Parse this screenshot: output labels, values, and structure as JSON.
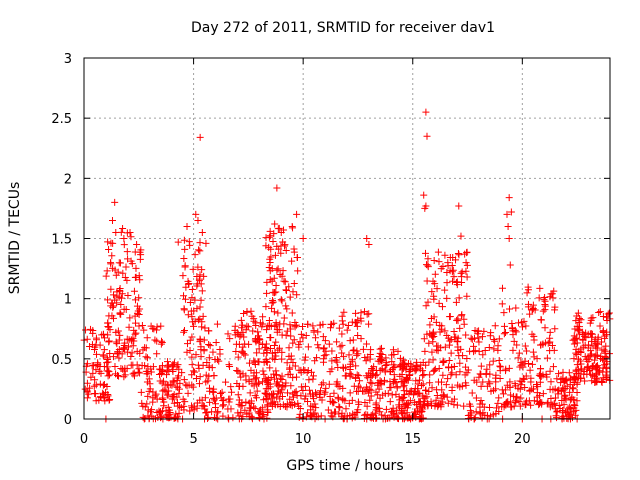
{
  "chart_data": {
    "type": "scatter",
    "title": "Day 272 of 2011, SRMTID for receiver dav1",
    "xlabel": "GPS time / hours",
    "ylabel": "SRMTID / TECUs",
    "xlim": [
      0,
      24
    ],
    "ylim": [
      0,
      3
    ],
    "xticks": [
      0,
      5,
      10,
      15,
      20
    ],
    "xtick_labels": [
      "0",
      "5",
      "10",
      "15",
      "20"
    ],
    "yticks": [
      0,
      0.5,
      1,
      1.5,
      2,
      2.5,
      3
    ],
    "ytick_labels": [
      "0",
      "0.5",
      "1",
      "1.5",
      "2",
      "2.5",
      "3"
    ],
    "grid": true,
    "marker": "plus",
    "series": [
      {
        "name": "dav1",
        "color": "#ff0000",
        "clusters": [
          {
            "x_start": 0.0,
            "x_end": 1.2,
            "y_low": 0.15,
            "y_high": 0.8,
            "n": 70
          },
          {
            "x_start": 1.0,
            "x_end": 2.6,
            "y_low": 0.35,
            "y_high": 1.6,
            "n": 150
          },
          {
            "x_start": 2.6,
            "x_end": 3.6,
            "y_low": 0.0,
            "y_high": 0.8,
            "n": 70
          },
          {
            "x_start": 3.5,
            "x_end": 4.5,
            "y_low": 0.0,
            "y_high": 0.5,
            "n": 80
          },
          {
            "x_start": 4.5,
            "x_end": 5.6,
            "y_low": 0.05,
            "y_high": 1.5,
            "n": 110
          },
          {
            "x_start": 5.6,
            "x_end": 7.0,
            "y_low": 0.0,
            "y_high": 0.8,
            "n": 70
          },
          {
            "x_start": 7.0,
            "x_end": 8.4,
            "y_low": 0.0,
            "y_high": 0.9,
            "n": 150
          },
          {
            "x_start": 8.3,
            "x_end": 9.8,
            "y_low": 0.1,
            "y_high": 1.6,
            "n": 190
          },
          {
            "x_start": 9.8,
            "x_end": 11.5,
            "y_low": 0.0,
            "y_high": 0.8,
            "n": 110
          },
          {
            "x_start": 11.5,
            "x_end": 13.0,
            "y_low": 0.0,
            "y_high": 0.9,
            "n": 120
          },
          {
            "x_start": 13.0,
            "x_end": 14.5,
            "y_low": 0.0,
            "y_high": 0.6,
            "n": 130
          },
          {
            "x_start": 14.5,
            "x_end": 15.5,
            "y_low": 0.0,
            "y_high": 0.5,
            "n": 120
          },
          {
            "x_start": 15.5,
            "x_end": 17.5,
            "y_low": 0.1,
            "y_high": 1.4,
            "n": 190
          },
          {
            "x_start": 17.5,
            "x_end": 19.0,
            "y_low": 0.0,
            "y_high": 0.8,
            "n": 90
          },
          {
            "x_start": 19.0,
            "x_end": 21.5,
            "y_low": 0.1,
            "y_high": 1.1,
            "n": 180
          },
          {
            "x_start": 21.5,
            "x_end": 22.5,
            "y_low": 0.0,
            "y_high": 0.4,
            "n": 80
          },
          {
            "x_start": 22.3,
            "x_end": 24.0,
            "y_low": 0.3,
            "y_high": 0.9,
            "n": 170
          }
        ],
        "points": [
          [
            1.4,
            1.8
          ],
          [
            1.3,
            1.65
          ],
          [
            1.45,
            1.55
          ],
          [
            2.1,
            1.55
          ],
          [
            2.4,
            1.45
          ],
          [
            4.3,
            1.47
          ],
          [
            4.7,
            1.6
          ],
          [
            5.1,
            1.7
          ],
          [
            5.2,
            1.65
          ],
          [
            5.3,
            2.34
          ],
          [
            5.4,
            1.55
          ],
          [
            8.7,
            1.62
          ],
          [
            8.8,
            1.92
          ],
          [
            9.0,
            1.55
          ],
          [
            9.5,
            1.6
          ],
          [
            9.7,
            1.7
          ],
          [
            10.0,
            1.5
          ],
          [
            12.9,
            1.5
          ],
          [
            13.0,
            1.45
          ],
          [
            15.6,
            2.55
          ],
          [
            15.65,
            2.35
          ],
          [
            15.5,
            1.86
          ],
          [
            15.6,
            1.77
          ],
          [
            15.55,
            1.75
          ],
          [
            17.1,
            1.77
          ],
          [
            17.2,
            1.52
          ],
          [
            19.4,
            1.84
          ],
          [
            19.5,
            1.72
          ],
          [
            19.3,
            1.7
          ],
          [
            19.35,
            1.6
          ],
          [
            19.4,
            1.5
          ],
          [
            19.45,
            1.28
          ],
          [
            16.6,
            1.3
          ],
          [
            16.3,
            1.25
          ],
          [
            1.0,
            0.0
          ],
          [
            2.75,
            0.0
          ],
          [
            3.6,
            0.0
          ],
          [
            5.5,
            0.0
          ],
          [
            6.1,
            0.0
          ],
          [
            6.6,
            0.0
          ],
          [
            11.0,
            0.0
          ],
          [
            12.0,
            0.0
          ],
          [
            12.9,
            0.0
          ],
          [
            14.9,
            0.0
          ],
          [
            15.4,
            0.0
          ],
          [
            17.8,
            0.0
          ],
          [
            18.4,
            0.0
          ],
          [
            19.1,
            0.0
          ],
          [
            20.0,
            0.0
          ],
          [
            20.9,
            0.0
          ],
          [
            21.3,
            0.0
          ],
          [
            22.5,
            0.0
          ]
        ]
      }
    ]
  }
}
